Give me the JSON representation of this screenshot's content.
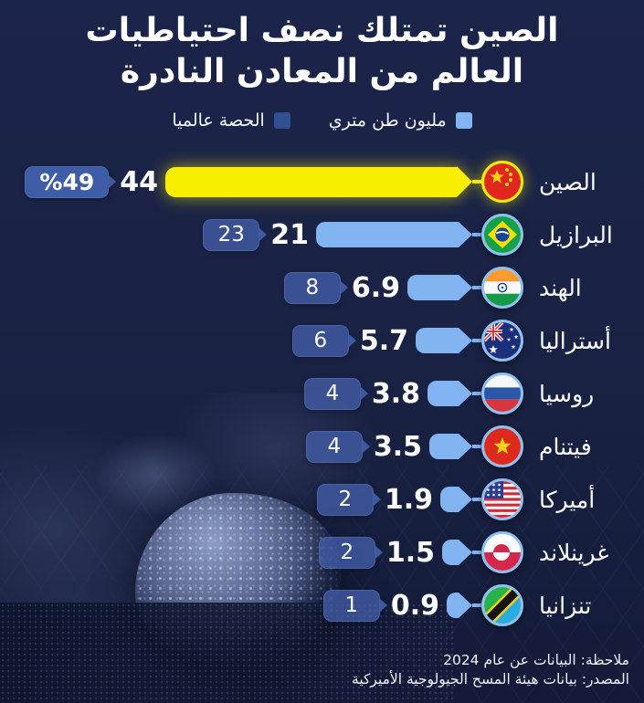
{
  "title": {
    "line1": "الصين تمتلك نصف احتياطيات",
    "line2": "العالم من المعادن النادرة"
  },
  "legend": [
    {
      "label": "مليون طن متري",
      "color": "#82b4f2"
    },
    {
      "label": "الحصة عالميا",
      "color": "#31508f"
    }
  ],
  "chart_data": {
    "type": "bar",
    "orientation": "horizontal",
    "direction": "rtl",
    "title": "الصين تمتلك نصف احتياطيات العالم من المعادن النادرة",
    "categories": [
      "الصين",
      "البرازيل",
      "الهند",
      "أستراليا",
      "روسيا",
      "فيتنام",
      "أميركا",
      "غرينلاند",
      "تنزانيا"
    ],
    "series": [
      {
        "name": "مليون طن متري",
        "values": [
          44,
          21,
          6.9,
          5.7,
          3.8,
          3.5,
          1.9,
          1.5,
          0.9
        ]
      },
      {
        "name": "الحصة عالميا (%)",
        "values": [
          49,
          23,
          8,
          6,
          4,
          4,
          2,
          2,
          1
        ]
      }
    ],
    "xlim": [
      0,
      44
    ],
    "rows": [
      {
        "country": "الصين",
        "flag": "china",
        "tons": 44,
        "tons_label": "44",
        "share_label": "%49",
        "highlight": true
      },
      {
        "country": "البرازيل",
        "flag": "brazil",
        "tons": 21,
        "tons_label": "21",
        "share_label": "23",
        "highlight": false
      },
      {
        "country": "الهند",
        "flag": "india",
        "tons": 6.9,
        "tons_label": "6.9",
        "share_label": "8",
        "highlight": false
      },
      {
        "country": "أستراليا",
        "flag": "australia",
        "tons": 5.7,
        "tons_label": "5.7",
        "share_label": "6",
        "highlight": false
      },
      {
        "country": "روسيا",
        "flag": "russia",
        "tons": 3.8,
        "tons_label": "3.8",
        "share_label": "4",
        "highlight": false
      },
      {
        "country": "فيتنام",
        "flag": "vietnam",
        "tons": 3.5,
        "tons_label": "3.5",
        "share_label": "4",
        "highlight": false
      },
      {
        "country": "أميركا",
        "flag": "usa",
        "tons": 1.9,
        "tons_label": "1.9",
        "share_label": "2",
        "highlight": false
      },
      {
        "country": "غرينلاند",
        "flag": "greenland",
        "tons": 1.5,
        "tons_label": "1.5",
        "share_label": "2",
        "highlight": false
      },
      {
        "country": "تنزانيا",
        "flag": "tanzania",
        "tons": 0.9,
        "tons_label": "0.9",
        "share_label": "1",
        "highlight": false
      }
    ]
  },
  "colors": {
    "background": "#1a2345",
    "bar": "#82b4f2",
    "highlight_bar": "#f8ee00",
    "badge": "#3f5ca6",
    "title_text": "#ffffff"
  },
  "footer": {
    "note": "ملاحظة: البيانات عن عام 2024",
    "source": "المصدر: بيانات هيئة المسح الجيولوجية الأميركية"
  }
}
